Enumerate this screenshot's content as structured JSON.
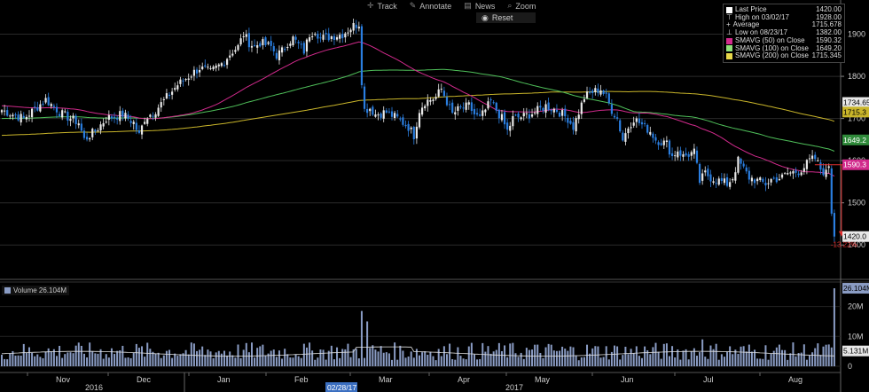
{
  "toolbar": {
    "track_label": "Track",
    "annotate_label": "Annotate",
    "news_label": "News",
    "zoom_label": "Zoom",
    "reset_label": "Reset",
    "track_icon": "crosshair-icon",
    "annotate_icon": "pencil-icon",
    "news_icon": "news-icon",
    "zoom_icon": "magnifier-icon",
    "reset_icon": "radio-icon"
  },
  "legend": {
    "last_price_label": "Last Price",
    "last_price_value": "1420.00",
    "high_label": "High on 03/02/17",
    "high_value": "1928.00",
    "average_label": "Average",
    "average_value": "1715.678",
    "low_label": "Low on 08/23/17",
    "low_value": "1382.00",
    "sma50_label": "SMAVG (50) on Close",
    "sma50_value": "1590.32",
    "sma100_label": "SMAVG (100) on Close",
    "sma100_value": "1649.20",
    "sma200_label": "SMAVG (200) on Close",
    "sma200_value": "1715.345"
  },
  "volume_panel": {
    "label": "Volume 26.104M",
    "tag_current": "26.104M",
    "tag_avg": "5.131M"
  },
  "price_tags": {
    "sma": "1734.65",
    "sma200": "1715.3",
    "sma100": "1649.2",
    "sma50": "1590.3",
    "last": "1420.0",
    "change": "-13.22%"
  },
  "date_tag": "02/28/17",
  "colors": {
    "up": "#e8e8e8",
    "down": "#2a7ee0",
    "sma50": "#d12a8c",
    "sma100": "#4fc05a",
    "sma200": "#c9b52a",
    "volume": "#8a9cc4",
    "change_arrow": "#e23030"
  },
  "chart_data": {
    "type": "candlestick",
    "y_ticks": [
      1400,
      1500,
      1600,
      1700,
      1800,
      1900
    ],
    "ylim": [
      1350,
      1960
    ],
    "volume_ticks": [
      "0",
      "10M",
      "20M"
    ],
    "volume_ylim": [
      0,
      27
    ],
    "month_labels": [
      "Nov",
      "Dec",
      "Jan",
      "Feb",
      "Mar",
      "Apr",
      "May",
      "Jun",
      "Jul",
      "Aug"
    ],
    "year_labels": [
      "2016",
      "2017"
    ],
    "last_price": 1420.0,
    "high": 1928.0,
    "average": 1715.678,
    "low": 1382.0,
    "sma50": 1590.32,
    "sma100": 1649.2,
    "sma200": 1715.345,
    "change_pct": -13.22,
    "price_path": [
      [
        0,
        1720
      ],
      [
        8,
        1700
      ],
      [
        16,
        1745
      ],
      [
        22,
        1710
      ],
      [
        28,
        1690
      ],
      [
        30,
        1650
      ],
      [
        34,
        1670
      ],
      [
        38,
        1700
      ],
      [
        44,
        1710
      ],
      [
        48,
        1690
      ],
      [
        50,
        1660
      ],
      [
        52,
        1700
      ],
      [
        56,
        1720
      ],
      [
        60,
        1750
      ],
      [
        64,
        1780
      ],
      [
        68,
        1800
      ],
      [
        72,
        1820
      ],
      [
        76,
        1810
      ],
      [
        80,
        1830
      ],
      [
        84,
        1860
      ],
      [
        86,
        1870
      ],
      [
        88,
        1900
      ],
      [
        90,
        1880
      ],
      [
        92,
        1870
      ],
      [
        94,
        1880
      ],
      [
        98,
        1870
      ],
      [
        100,
        1850
      ],
      [
        102,
        1860
      ],
      [
        104,
        1880
      ],
      [
        106,
        1890
      ],
      [
        108,
        1875
      ],
      [
        110,
        1860
      ],
      [
        112,
        1900
      ],
      [
        114,
        1910
      ],
      [
        116,
        1890
      ],
      [
        120,
        1895
      ],
      [
        124,
        1900
      ],
      [
        126,
        1910
      ],
      [
        128,
        1920
      ],
      [
        130,
        1925
      ],
      [
        131,
        1790
      ],
      [
        132,
        1720
      ],
      [
        134,
        1725
      ],
      [
        136,
        1710
      ],
      [
        140,
        1715
      ],
      [
        144,
        1700
      ],
      [
        148,
        1680
      ],
      [
        150,
        1660
      ],
      [
        152,
        1720
      ],
      [
        154,
        1740
      ],
      [
        158,
        1750
      ],
      [
        160,
        1770
      ],
      [
        162,
        1740
      ],
      [
        164,
        1710
      ],
      [
        166,
        1720
      ],
      [
        170,
        1730
      ],
      [
        172,
        1710
      ],
      [
        174,
        1700
      ],
      [
        176,
        1720
      ],
      [
        178,
        1740
      ],
      [
        182,
        1700
      ],
      [
        184,
        1670
      ],
      [
        186,
        1700
      ],
      [
        190,
        1705
      ],
      [
        194,
        1715
      ],
      [
        198,
        1730
      ],
      [
        202,
        1720
      ],
      [
        206,
        1700
      ],
      [
        208,
        1680
      ],
      [
        212,
        1750
      ],
      [
        214,
        1760
      ],
      [
        218,
        1770
      ],
      [
        220,
        1750
      ],
      [
        222,
        1720
      ],
      [
        224,
        1700
      ],
      [
        226,
        1650
      ],
      [
        228,
        1680
      ],
      [
        230,
        1700
      ],
      [
        232,
        1690
      ],
      [
        236,
        1670
      ],
      [
        238,
        1650
      ],
      [
        242,
        1640
      ],
      [
        244,
        1610
      ],
      [
        246,
        1625
      ],
      [
        248,
        1610
      ],
      [
        252,
        1620
      ],
      [
        254,
        1550
      ],
      [
        256,
        1570
      ],
      [
        258,
        1560
      ],
      [
        262,
        1550
      ],
      [
        264,
        1545
      ],
      [
        266,
        1560
      ],
      [
        268,
        1600
      ],
      [
        270,
        1580
      ],
      [
        272,
        1560
      ],
      [
        276,
        1550
      ],
      [
        278,
        1545
      ],
      [
        280,
        1555
      ],
      [
        284,
        1560
      ],
      [
        286,
        1570
      ],
      [
        290,
        1575
      ],
      [
        292,
        1585
      ],
      [
        294,
        1600
      ],
      [
        296,
        1605
      ],
      [
        298,
        1580
      ],
      [
        300,
        1570
      ],
      [
        301,
        1590
      ],
      [
        302,
        1480
      ],
      [
        303,
        1420
      ]
    ],
    "volume_avg": 5.131,
    "volume_last": 26.104,
    "volume_spikes": [
      [
        131,
        18.5
      ],
      [
        133,
        15
      ],
      [
        255,
        9
      ],
      [
        303,
        26.1
      ]
    ]
  }
}
